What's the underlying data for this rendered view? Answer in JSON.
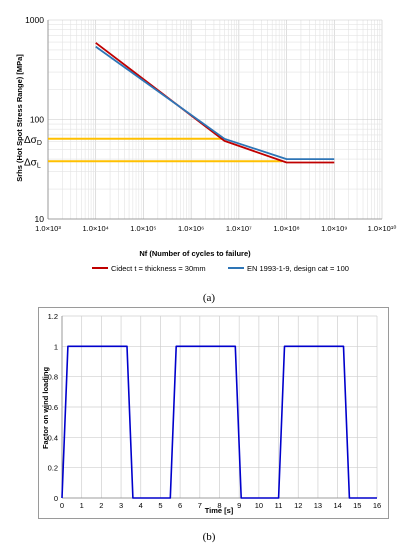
{
  "chart_data": [
    {
      "id": "a",
      "type": "line",
      "x_scale": "log",
      "y_scale": "log",
      "xlabel": "Nf (Number of cycles to failure)",
      "ylabel": "Srhs (Hot Spot Stress Range) [MPa]",
      "xlim": [
        1000,
        10000000000
      ],
      "ylim": [
        10,
        1000
      ],
      "x_ticks": [
        {
          "value": 1000,
          "label": "1.0×10³"
        },
        {
          "value": 10000,
          "label": "1.0×10⁴"
        },
        {
          "value": 100000,
          "label": "1.0×10⁵"
        },
        {
          "value": 1000000,
          "label": "1.0×10⁶"
        },
        {
          "value": 10000000,
          "label": "1.0×10⁷"
        },
        {
          "value": 100000000,
          "label": "1.0×10⁸"
        },
        {
          "value": 1000000000,
          "label": "1.0×10⁹"
        },
        {
          "value": 10000000000,
          "label": "1.0×10¹⁰"
        }
      ],
      "y_ticks": [
        {
          "value": 10,
          "label": "10"
        },
        {
          "value": 100,
          "label": "100"
        },
        {
          "value": 1000,
          "label": "1000"
        }
      ],
      "grid": true,
      "legend_position": "bottom",
      "series": [
        {
          "name": "Cidect t = thickness = 30mm",
          "color": "#c00000",
          "points": [
            [
              10000,
              590
            ],
            [
              5000000,
              61
            ],
            [
              100000000,
              37
            ],
            [
              1000000000,
              37
            ]
          ]
        },
        {
          "name": "EN 1993-1-9, design cat = 100",
          "color": "#2e75b6",
          "points": [
            [
              10000,
              540
            ],
            [
              5000000,
              64
            ],
            [
              100000000,
              40
            ],
            [
              1000000000,
              40
            ]
          ]
        }
      ],
      "reference_lines": [
        {
          "label": "Δσ",
          "subscript": "D",
          "value": 64,
          "x_end": 5000000,
          "color": "#ffc000"
        },
        {
          "label": "Δσ",
          "subscript": "L",
          "value": 38,
          "x_end": 80000000,
          "color": "#ffc000"
        }
      ],
      "caption": "(a)"
    },
    {
      "id": "b",
      "type": "line",
      "xlabel": "Time [s]",
      "ylabel": "Factor on wind loading",
      "xlim": [
        0,
        16
      ],
      "ylim": [
        0,
        1.2
      ],
      "x_ticks": [
        0,
        1,
        2,
        3,
        4,
        5,
        6,
        7,
        8,
        9,
        10,
        11,
        12,
        13,
        14,
        15,
        16
      ],
      "y_ticks": [
        0,
        0.2,
        0.4,
        0.6,
        0.8,
        1,
        1.2
      ],
      "grid": true,
      "series": [
        {
          "color": "#0000cc",
          "points": [
            [
              0,
              0
            ],
            [
              0.3,
              1
            ],
            [
              3.3,
              1
            ],
            [
              3.6,
              0
            ],
            [
              5.5,
              0
            ],
            [
              5.8,
              1
            ],
            [
              8.8,
              1
            ],
            [
              9.1,
              0
            ],
            [
              11.0,
              0
            ],
            [
              11.3,
              1
            ],
            [
              14.3,
              1
            ],
            [
              14.6,
              0
            ],
            [
              16,
              0
            ]
          ]
        }
      ],
      "caption": "(b)"
    }
  ]
}
